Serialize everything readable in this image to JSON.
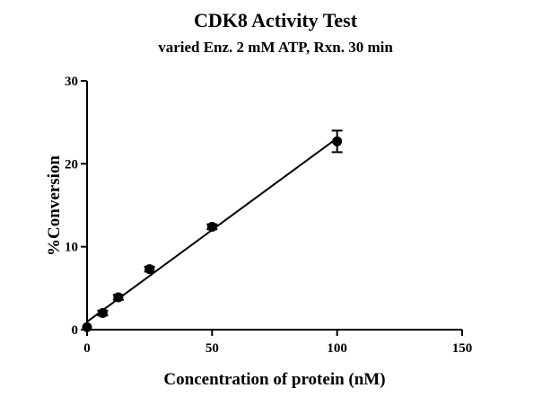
{
  "chart_data": {
    "type": "scatter",
    "title": "CDK8 Activity Test",
    "subtitle": "varied Enz. 2 mM ATP, Rxn. 30 min",
    "xlabel": "Concentration of protein (nM)",
    "ylabel": "%Conversion",
    "xlim": [
      0,
      150
    ],
    "ylim": [
      0,
      30
    ],
    "xticks": [
      0,
      50,
      100,
      150
    ],
    "yticks": [
      0,
      10,
      20,
      30
    ],
    "grid": false,
    "series": [
      {
        "name": "CDK8",
        "x": [
          0,
          6.25,
          12.5,
          25,
          50,
          100
        ],
        "y": [
          0.3,
          2.0,
          3.9,
          7.3,
          12.4,
          22.7
        ],
        "yerr": [
          0,
          0.3,
          0.3,
          0.3,
          0.3,
          1.3
        ],
        "fit": "line",
        "color": "#000000"
      }
    ]
  }
}
